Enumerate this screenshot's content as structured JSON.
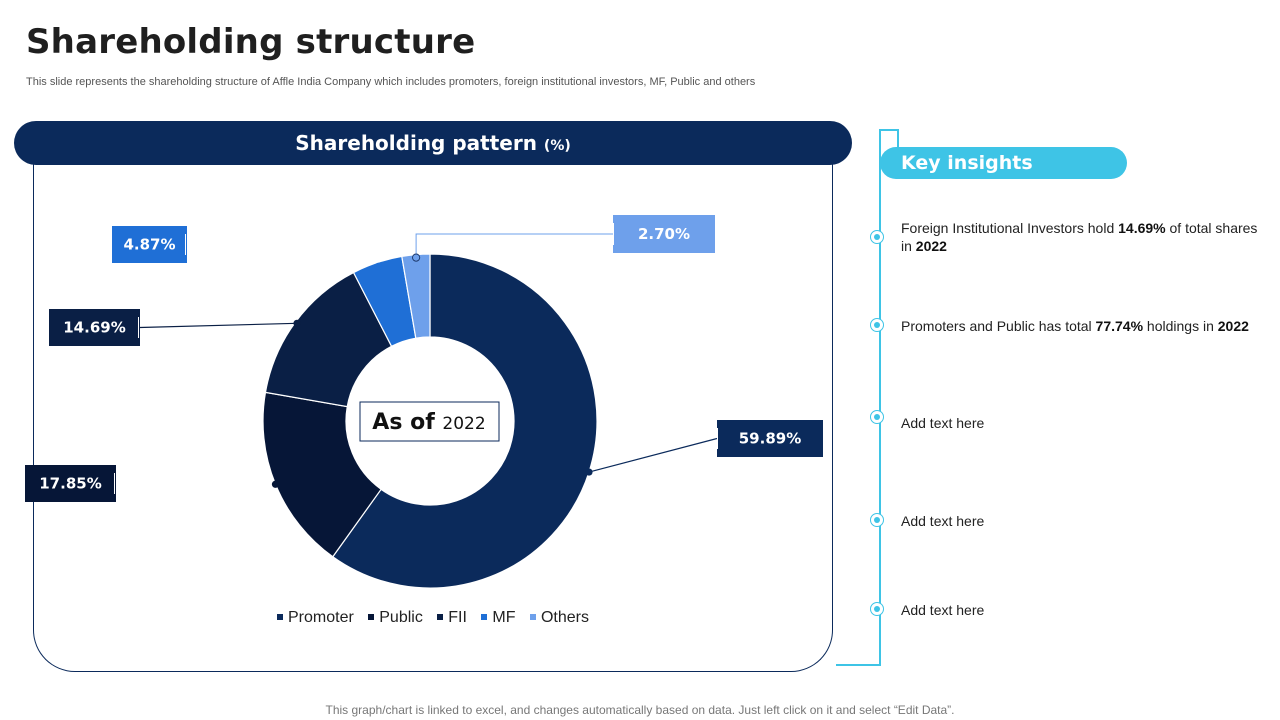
{
  "slide": {
    "title": "Shareholding structure",
    "subtitle": "This slide represents the shareholding structure of Affle India Company which includes promoters, foreign institutional investors, MF,  Public and others",
    "footer": "This graph/chart is linked to excel, and changes automatically based on data. Just left click on it and select “Edit Data”."
  },
  "panel": {
    "header_main": "Shareholding pattern",
    "header_unit": "(%)"
  },
  "chart_data": {
    "type": "pie",
    "title": "Shareholding pattern (%)",
    "center_label_prefix": "As of",
    "center_label_year": "2022",
    "categories": [
      "Promoter",
      "Public",
      "FII",
      "MF",
      "Others"
    ],
    "values": [
      59.89,
      17.85,
      14.69,
      4.87,
      2.7
    ],
    "labels": [
      "59.89%",
      "17.85%",
      "14.69%",
      "4.87%",
      "2.70%"
    ],
    "colors": [
      "#0b2a5b",
      "#061637",
      "#0a1f45",
      "#1f6fd6",
      "#6ea0eb"
    ],
    "label_colors": [
      "#0b2a5b",
      "#061637",
      "#0a1f45",
      "#1f6fd6",
      "#6ea0eb"
    ],
    "legend_position": "bottom"
  },
  "key_insights": {
    "heading": "Key insights",
    "items": [
      {
        "pre": "Foreign Institutional Investors hold ",
        "b1": "14.69%",
        "mid": " of total shares in ",
        "b2": "2022",
        "post": ""
      },
      {
        "pre": "Promoters and Public has total ",
        "b1": "77.74%",
        "mid": " holdings in ",
        "b2": "2022",
        "post": ""
      },
      {
        "pre": "Add text here",
        "b1": "",
        "mid": "",
        "b2": "",
        "post": ""
      },
      {
        "pre": "Add text here",
        "b1": "",
        "mid": "",
        "b2": "",
        "post": ""
      },
      {
        "pre": "Add text here",
        "b1": "",
        "mid": "",
        "b2": "",
        "post": ""
      }
    ]
  }
}
